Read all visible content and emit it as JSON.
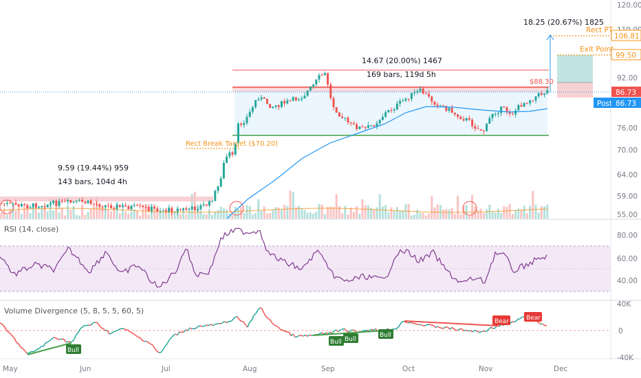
{
  "price_axis": {
    "ticks": [
      "120.00",
      "110.00",
      "92.00",
      "76.00",
      "70.00",
      "64.00",
      "59.00",
      "55.00"
    ]
  },
  "rsi_axis": {
    "ticks": [
      "80.00",
      "60.00",
      "40.00"
    ]
  },
  "vd_axis": {
    "ticks": [
      "40K",
      "0",
      "-40K"
    ]
  },
  "time_axis": {
    "labels": [
      "May",
      "Jun",
      "Jul",
      "Aug",
      "Sep",
      "Oct",
      "Nov",
      "Dec"
    ]
  },
  "price_tags": [
    {
      "label": "Rect PT",
      "value": "106.81",
      "color": "#f7931a"
    },
    {
      "label": "Exit Point",
      "value": "99.50",
      "color": "#f7931a"
    },
    {
      "label": "",
      "value": "86.73",
      "color": "#ef5350"
    },
    {
      "label": "Post",
      "value": "86.73",
      "color": "#2196f3"
    }
  ],
  "annotations": {
    "measure_right": "18.25 (20.67%) 1825",
    "rect_line1": "14.67 (20.00%) 1467",
    "rect_line2": "169 bars, 119d 5h",
    "break_target": "Rect Break Target ($70.20)",
    "left_line1": "9.59 (19.44%) 959",
    "left_line2": "143 bars, 104d 4h",
    "price_88": "$88.30"
  },
  "rsi": {
    "title": "RSI (14, close)"
  },
  "volume_divergence": {
    "title": "Volume Divergence (5, 8, 5, 5, 60, 5)",
    "labels": {
      "bull": "Bull",
      "bear": "Bear"
    }
  },
  "colors": {
    "up": "#26a69a",
    "down": "#ef5350",
    "ma": "#2196f3",
    "rsi": "#7e3a8e",
    "target": "#f7931a"
  }
}
